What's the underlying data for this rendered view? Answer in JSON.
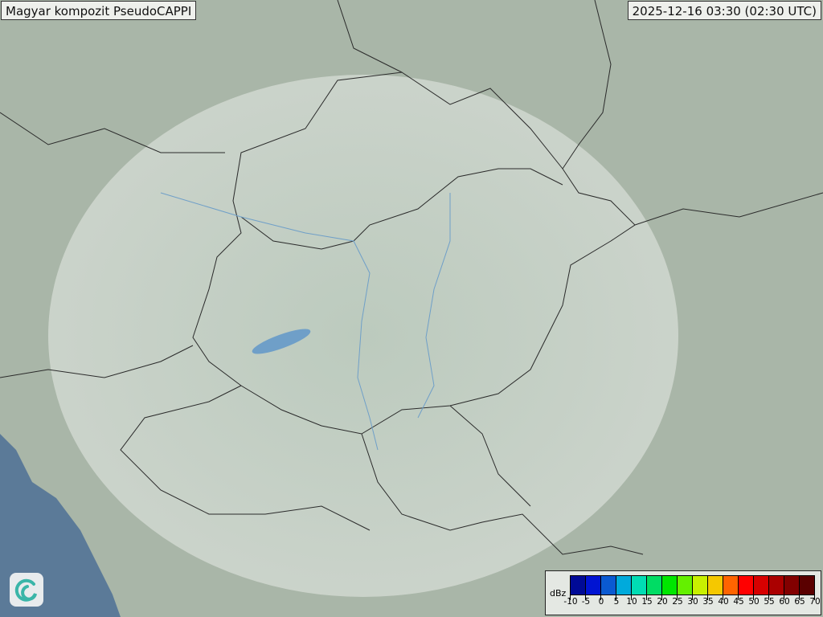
{
  "header": {
    "title": "Magyar kompozit  PseudoCAPPI",
    "timestamp": "2025-12-16 03:30 (02:30 UTC)"
  },
  "map": {
    "land_color": "#a9b6a8",
    "radar_coverage_color": "#c9d6cc",
    "sea_color": "#5b7a98",
    "river_color": "#6f9fc8",
    "border_color": "#2a2a2a"
  },
  "legend": {
    "unit": "dBz",
    "tick_labels": [
      "-10",
      "-5",
      "0",
      "5",
      "10",
      "15",
      "20",
      "25",
      "30",
      "35",
      "40",
      "45",
      "50",
      "55",
      "60",
      "65",
      "70"
    ],
    "colors": [
      "#000a96",
      "#0014d2",
      "#0a5ad2",
      "#00aadc",
      "#00dcb4",
      "#00dc64",
      "#00e600",
      "#64f000",
      "#c8f000",
      "#f5c800",
      "#ff6400",
      "#ff0000",
      "#d70000",
      "#aa0000",
      "#820000",
      "#5a0000"
    ]
  },
  "logo": {
    "name": "swirl-logo-icon"
  }
}
